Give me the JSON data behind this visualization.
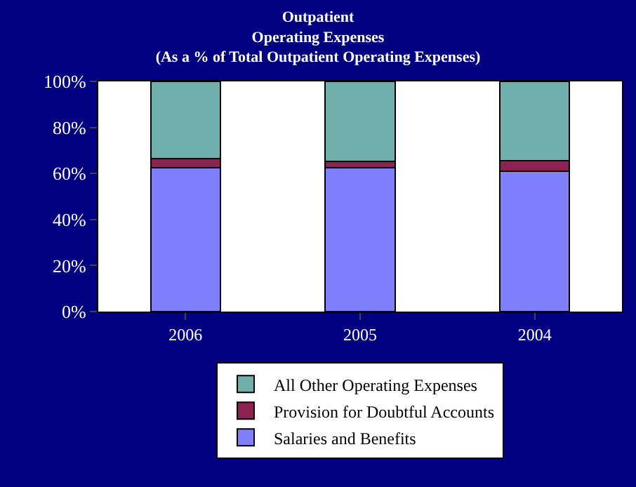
{
  "chart_data": {
    "type": "bar",
    "title": "Outpatient\nOperating Expenses\n(As a % of Total Outpatient Operating Expenses)",
    "categories": [
      "2006",
      "2005",
      "2004"
    ],
    "stacked": true,
    "series": [
      {
        "name": "Salaries and Benefits",
        "color": "#8080ff",
        "values": [
          62.5,
          62.5,
          61
        ]
      },
      {
        "name": "Provision for Doubtful Accounts",
        "color": "#8b2252",
        "values": [
          4.1,
          2.6,
          4.6
        ]
      },
      {
        "name": "All Other Operating Expenses",
        "color": "#6fb0ac",
        "values": [
          33.4,
          34.9,
          34.4
        ]
      }
    ],
    "ylim": [
      0,
      100
    ],
    "yticks": [
      {
        "value": 0,
        "label": "0%"
      },
      {
        "value": 20,
        "label": "20%"
      },
      {
        "value": 40,
        "label": "40%"
      },
      {
        "value": 60,
        "label": "60%"
      },
      {
        "value": 80,
        "label": "80%"
      },
      {
        "value": 100,
        "label": "100%"
      }
    ],
    "grid": false,
    "legend": "bottom"
  }
}
